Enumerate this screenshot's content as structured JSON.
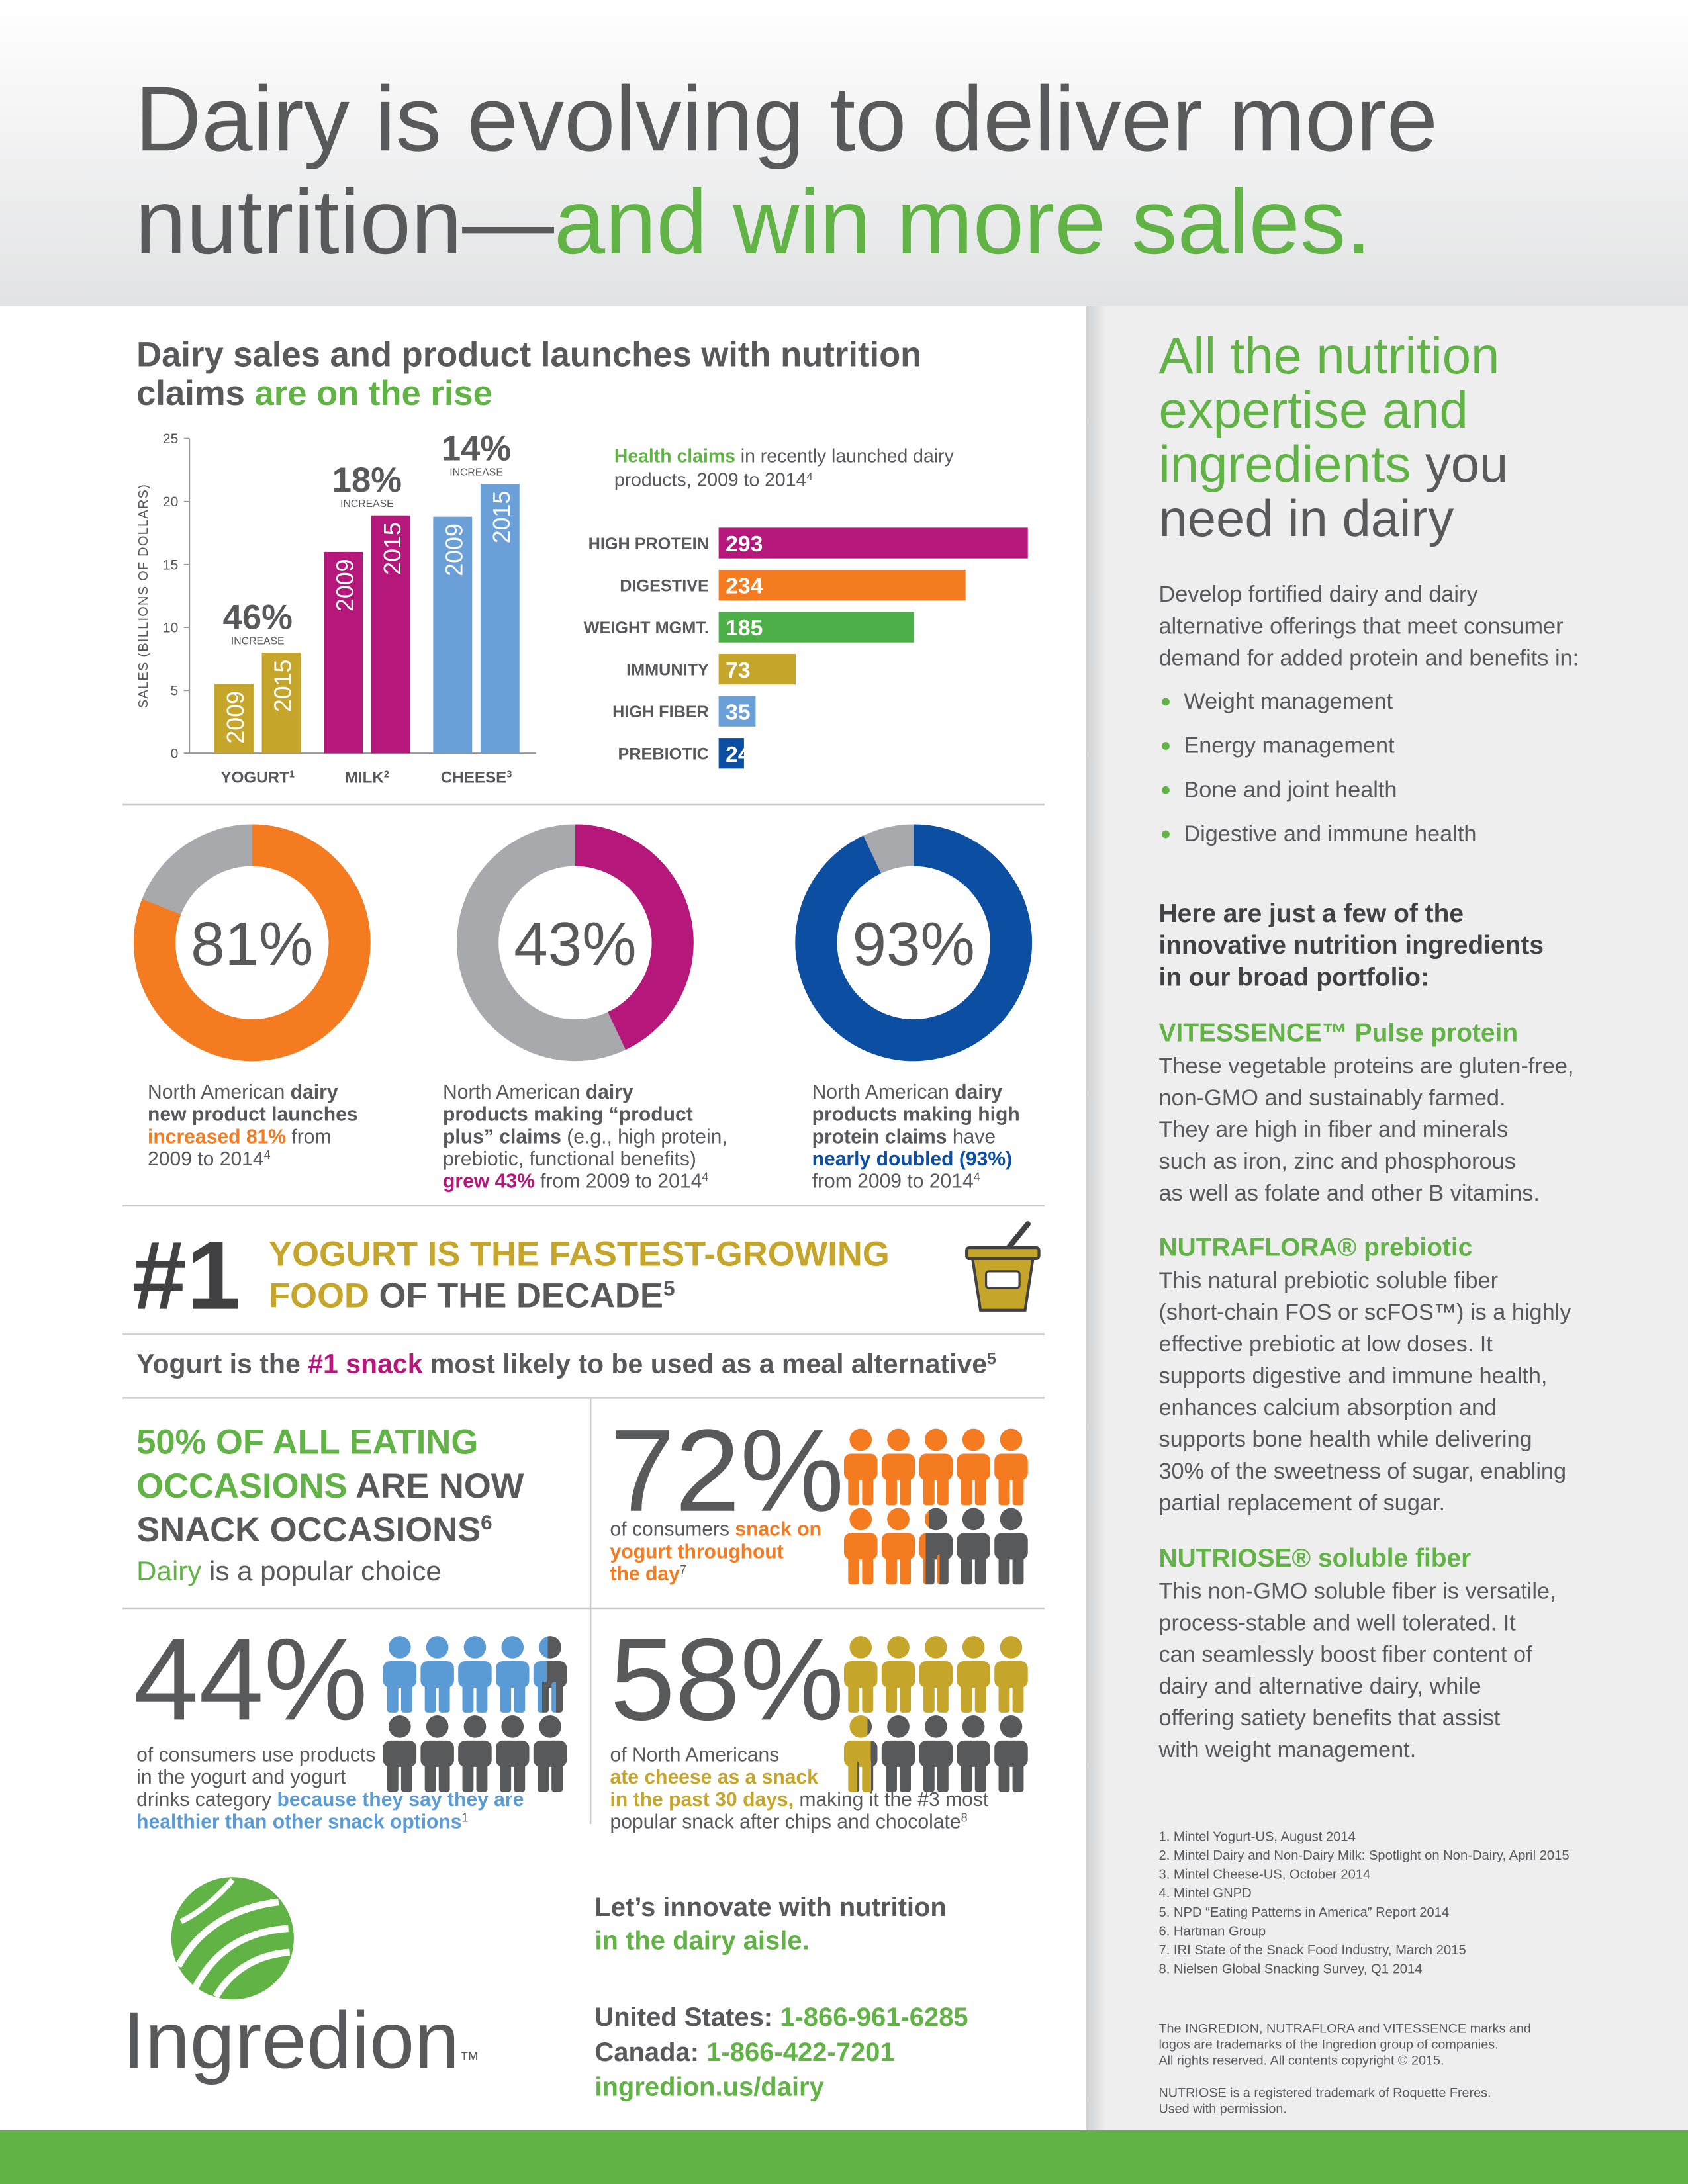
{
  "header": {
    "title": [
      [
        "Dairy is evolving to deliver more"
      ],
      [
        "nutrition—",
        "and win more sales."
      ]
    ]
  },
  "sales": {
    "heading": [
      [
        "Dairy sales and product launches with nutrition"
      ],
      [
        "claims ",
        "are on the rise"
      ]
    ]
  },
  "chart_data": [
    {
      "type": "bar",
      "y_label": "SALES (BILLIONS OF DOLLARS)",
      "categories": [
        "YOGURT",
        "MILK",
        "CHEESE"
      ],
      "category_notes": [
        "1",
        "2",
        "3"
      ],
      "colors": [
        "#c6a52b",
        "#b5177a",
        "#6a9fd8"
      ],
      "series": [
        {
          "name": "2009",
          "values": [
            5.5,
            16,
            18.8
          ]
        },
        {
          "name": "2015",
          "values": [
            8,
            18.9,
            21.4
          ]
        }
      ],
      "increase": {
        "values": [
          46,
          18,
          14
        ],
        "value_labels": [
          "46%",
          "18%",
          "14%"
        ],
        "caption": "INCREASE"
      },
      "ylim": [
        0,
        25
      ],
      "yticks": [
        0,
        5,
        10,
        15,
        20,
        25
      ]
    },
    {
      "type": "hbar",
      "title": [
        [
          "Health claims",
          " in recently launched dairy"
        ],
        [
          "products, 2009 to 2014",
          "4"
        ]
      ],
      "categories": [
        "HIGH PROTEIN",
        "DIGESTIVE",
        "WEIGHT MGMT.",
        "IMMUNITY",
        "HIGH FIBER",
        "PREBIOTIC"
      ],
      "values": [
        293,
        234,
        185,
        73,
        35,
        24
      ],
      "colors": [
        "#b5177a",
        "#f47b20",
        "#4caf48",
        "#c6a52b",
        "#6a9fd8",
        "#0b4ea2"
      ]
    },
    {
      "type": "donut",
      "value": 81,
      "value_label": "81%",
      "color": "#f47b20",
      "rest_color": "#a7a9ac",
      "caption": [
        [
          "North American ",
          "dairy"
        ],
        [
          "new product launches"
        ],
        [
          "increased 81%",
          " from"
        ],
        [
          "2009 to 2014",
          "4"
        ]
      ]
    },
    {
      "type": "donut",
      "value": 43,
      "value_label": "43%",
      "color": "#b5177a",
      "rest_color": "#a7a9ac",
      "caption": [
        [
          "North American ",
          "dairy"
        ],
        [
          "products making “product"
        ],
        [
          "plus” claims",
          " (e.g., high protein,"
        ],
        [
          "prebiotic, functional benefits)"
        ],
        [
          "grew 43%",
          " from 2009 to 2014",
          "4"
        ]
      ]
    },
    {
      "type": "donut",
      "value": 93,
      "value_label": "93%",
      "color": "#0b4ea2",
      "rest_color": "#a7a9ac",
      "caption": [
        [
          "North American ",
          "dairy"
        ],
        [
          "products making high"
        ],
        [
          "protein claims",
          " have"
        ],
        [
          "nearly doubled (93%)"
        ],
        [
          "from 2009 to 2014",
          "4"
        ]
      ]
    },
    {
      "type": "pictogram",
      "value": 72,
      "value_label": "72%",
      "color": "#f47b20",
      "rest_color": "#58595b",
      "caption": [
        [
          "of consumers ",
          "snack on"
        ],
        [
          "yogurt throughout"
        ],
        [
          "the day",
          "7"
        ]
      ]
    },
    {
      "type": "pictogram",
      "value": 44,
      "value_label": "44%",
      "color": "#5b9bd5",
      "rest_color": "#58595b",
      "caption": [
        [
          "of consumers use products"
        ],
        [
          "in the yogurt and yogurt"
        ],
        [
          "drinks category ",
          "because they say they are"
        ],
        [
          "healthier than other snack options",
          "1"
        ]
      ]
    },
    {
      "type": "pictogram",
      "value": 58,
      "value_label": "58%",
      "color": "#c6a52b",
      "rest_color": "#58595b",
      "caption": [
        [
          "of North Americans"
        ],
        [
          "ate cheese as a snack"
        ],
        [
          "in the past 30 days,",
          " making it the #3 most"
        ],
        [
          "popular snack after chips and chocolate",
          "8"
        ]
      ]
    }
  ],
  "yogurt_fact": {
    "rank": "#1",
    "heading": [
      [
        "YOGURT IS THE FASTEST-GROWING"
      ],
      [
        "FOOD",
        " OF THE DECADE",
        "5"
      ]
    ]
  },
  "snack_line": [
    "Yogurt is the ",
    "#1 snack",
    " most likely to be used as a meal alternative",
    "5"
  ],
  "occasions": {
    "heading": [
      [
        "50% OF ALL EATING"
      ],
      [
        "OCCASIONS",
        " ARE NOW"
      ],
      [
        "SNACK OCCASIONS",
        "6"
      ]
    ],
    "sub": [
      "Dairy",
      " is a popular choice"
    ]
  },
  "logo": {
    "wordmark": [
      "Ingredion",
      "™"
    ]
  },
  "cta": {
    "heading": [
      [
        "Let’s innovate with nutrition"
      ],
      [
        "in the dairy aisle."
      ]
    ],
    "contacts": [
      [
        "United States: ",
        "1-866-961-6285"
      ],
      [
        "Canada: ",
        "1-866-422-7201"
      ],
      [
        "ingredion.us/dairy"
      ]
    ]
  },
  "sidebar": {
    "heading": [
      [
        "All the nutrition"
      ],
      [
        "expertise and"
      ],
      [
        "ingredients",
        " you"
      ],
      [
        "need in dairy"
      ]
    ],
    "intro": [
      "Develop fortified dairy and dairy",
      "alternative offerings that meet consumer",
      "demand for added protein and benefits in:"
    ],
    "benefits": [
      "Weight management",
      "Energy management",
      "Bone and joint health",
      "Digestive and immune health"
    ],
    "portfolio_heading": [
      "Here are just a few of the",
      "innovative nutrition ingredients",
      "in our broad portfolio:"
    ],
    "ingredients": [
      {
        "name": "VITESSENCE™ Pulse protein",
        "lines": [
          "These vegetable proteins are gluten-free,",
          "non-GMO and sustainably farmed.",
          "They are high in fiber and minerals",
          "such as iron, zinc and phosphorous",
          "as well as folate and other B vitamins."
        ]
      },
      {
        "name": "NUTRAFLORA® prebiotic",
        "lines": [
          "This natural prebiotic soluble fiber",
          "(short-chain FOS or scFOS™) is a highly",
          "effective prebiotic at low doses. It",
          "supports digestive and immune health,",
          "enhances calcium absorption and",
          "supports bone health while delivering",
          "30% of the sweetness of sugar, enabling",
          "partial replacement of sugar."
        ]
      },
      {
        "name": "NUTRIOSE® soluble fiber",
        "lines": [
          "This non-GMO soluble fiber is versatile,",
          "process-stable and well tolerated. It",
          "can seamlessly boost fiber content of",
          "dairy and alternative dairy, while",
          "offering satiety benefits that assist",
          "with weight management."
        ]
      }
    ],
    "footnotes": [
      "1. Mintel Yogurt-US, August 2014",
      "2. Mintel Dairy and Non-Dairy Milk: Spotlight on Non-Dairy, April 2015",
      "3. Mintel Cheese-US, October 2014",
      "4. Mintel GNPD",
      "5. NPD “Eating Patterns in America” Report 2014",
      "6. Hartman Group",
      "7. IRI State of the Snack Food Industry, March 2015",
      "8. Nielsen Global Snacking Survey, Q1 2014"
    ],
    "legal": [
      "The INGREDION, NUTRAFLORA and VITESSENCE marks and",
      "logos are trademarks of the Ingredion group of companies.",
      "All rights reserved. All contents copyright © 2015."
    ],
    "permission": [
      "NUTRIOSE is a registered trademark of Roquette Freres.",
      "Used with permission."
    ]
  }
}
